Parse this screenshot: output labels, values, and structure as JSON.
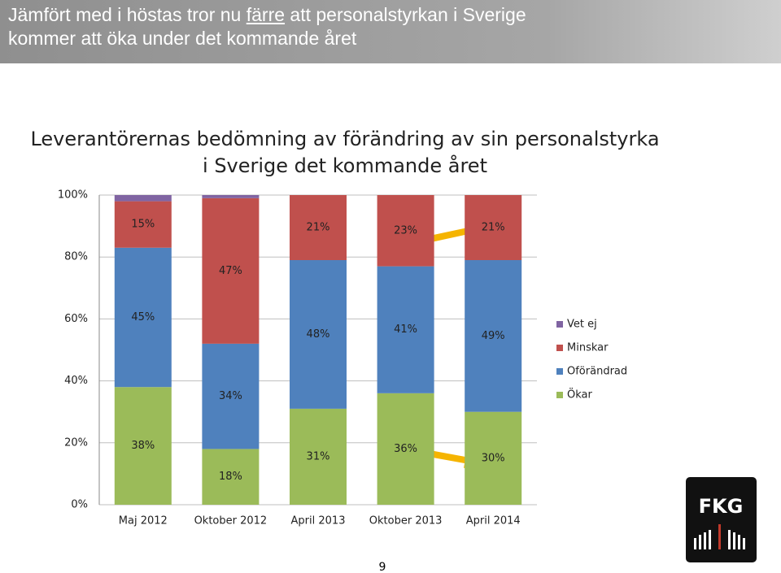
{
  "slide": {
    "title_parts": [
      "Jämfört med i höstas tror nu ",
      "färre",
      " att personalstyrkan i Sverige kommer att öka under det kommande året"
    ],
    "page_number": "9",
    "logo": "FKG"
  },
  "chart_data": {
    "type": "stacked_bar",
    "title": "Leverantörernas bedömning av förändring av sin personalstyrka i Sverige det kommande året",
    "categories": [
      "Maj 2012",
      "Oktober 2012",
      "April 2013",
      "Oktober 2013",
      "April 2014"
    ],
    "series": [
      {
        "name": "Ökar",
        "color": "#9bbb59",
        "values": [
          38,
          18,
          31,
          36,
          30
        ],
        "value_labels": [
          "38%",
          "18%",
          "31%",
          "36%",
          "30%"
        ]
      },
      {
        "name": "Oförändrad",
        "color": "#4f81bd",
        "values": [
          45,
          34,
          48,
          41,
          49
        ],
        "value_labels": [
          "45%",
          "34%",
          "48%",
          "41%",
          "49%"
        ]
      },
      {
        "name": "Minskar",
        "color": "#c0504d",
        "values": [
          15,
          47,
          21,
          23,
          21
        ],
        "value_labels": [
          "15%",
          "47%",
          "21%",
          "23%",
          "21%"
        ]
      },
      {
        "name": "Vet ej",
        "color": "#8064a2",
        "values": [
          2,
          1,
          0,
          0,
          0
        ]
      }
    ],
    "ylim": [
      0,
      100
    ],
    "yticks": [
      {
        "value": 0,
        "label": "0%"
      },
      {
        "value": 20,
        "label": "20%"
      },
      {
        "value": 40,
        "label": "40%"
      },
      {
        "value": 60,
        "label": "60%"
      },
      {
        "value": 80,
        "label": "80%"
      },
      {
        "value": 100,
        "label": "100%"
      }
    ],
    "grid": true,
    "legend": "right"
  }
}
